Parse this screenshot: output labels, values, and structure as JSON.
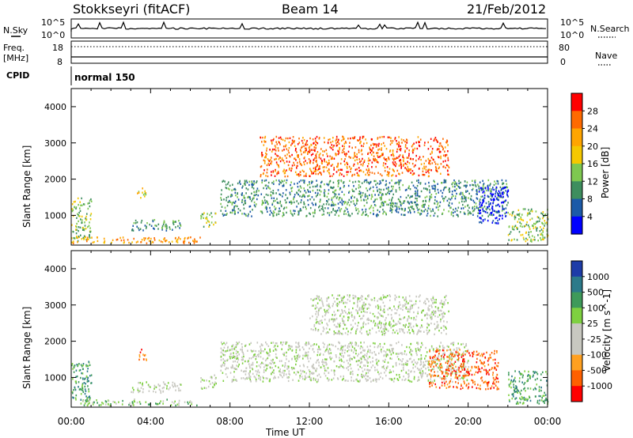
{
  "header": {
    "station": "Stokkseyri (fitACF)",
    "beam": "Beam 14",
    "date": "21/Feb/2012"
  },
  "top_panels": {
    "nsky_label": "N.Sky",
    "nsky_ticks": [
      "10^5",
      "10^0"
    ],
    "nsearch_label": "N.Search",
    "nsearch_ticks": [
      "10^5",
      "10^0"
    ],
    "freq_label_1": "Freq.",
    "freq_label_2": "[MHz]",
    "freq_ticks": [
      "18",
      "8"
    ],
    "nave_label": "Nave",
    "nave_ticks": [
      "80",
      "0"
    ],
    "cpid_label": "CPID",
    "cpid_value": "normal 150"
  },
  "chart_data": [
    {
      "type": "heatmap",
      "panel": "power",
      "ylabel": "Slant Range [km]",
      "xlabel": "Time UT",
      "ylim": [
        180,
        4500
      ],
      "y_ticks": [
        1000,
        2000,
        3000,
        4000
      ],
      "x_tick_labels": [
        "00:00",
        "04:00",
        "08:00",
        "12:00",
        "16:00",
        "20:00",
        "00:00"
      ],
      "colorbar_label": "Power [dB]",
      "colorbar_ticks": [
        "28",
        "24",
        "20",
        "16",
        "12",
        "8",
        "4"
      ],
      "colorbar_colors": [
        "#ff0000",
        "#ff6a00",
        "#ffa500",
        "#f5c800",
        "#7ec850",
        "#3e8e5e",
        "#1c5aa8",
        "#0000ff"
      ],
      "echo_regions": [
        {
          "t0": 0.0,
          "t1": 1.0,
          "r0": 300,
          "r1": 1500,
          "level": 4
        },
        {
          "t0": 0.0,
          "t1": 6.5,
          "r0": 250,
          "r1": 420,
          "level": 2
        },
        {
          "t0": 3.0,
          "t1": 5.5,
          "r0": 600,
          "r1": 900,
          "level": 5
        },
        {
          "t0": 6.5,
          "t1": 7.3,
          "r0": 700,
          "r1": 1100,
          "level": 4
        },
        {
          "t0": 3.3,
          "t1": 3.8,
          "r0": 1500,
          "r1": 1800,
          "level": 3
        },
        {
          "t0": 7.5,
          "t1": 22.0,
          "r0": 1000,
          "r1": 2000,
          "level": 5
        },
        {
          "t0": 9.5,
          "t1": 19.0,
          "r0": 2100,
          "r1": 3200,
          "level": 1
        },
        {
          "t0": 20.5,
          "t1": 22.0,
          "r0": 800,
          "r1": 1800,
          "level": 7
        },
        {
          "t0": 22.0,
          "t1": 24.0,
          "r0": 300,
          "r1": 1200,
          "level": 4
        }
      ]
    },
    {
      "type": "heatmap",
      "panel": "velocity",
      "ylabel": "Slant Range [km]",
      "xlabel": "Time UT",
      "ylim": [
        180,
        4500
      ],
      "y_ticks": [
        1000,
        2000,
        3000,
        4000
      ],
      "x_tick_labels": [
        "00:00",
        "04:00",
        "08:00",
        "12:00",
        "16:00",
        "20:00",
        "00:00"
      ],
      "colorbar_label": "Velocity [m s^-1]",
      "colorbar_ticks": [
        "1000",
        "500",
        "100",
        "25",
        "-25",
        "-100",
        "-500",
        "-1000"
      ],
      "colorbar_colors": [
        "#1e3ca8",
        "#2c7a8a",
        "#3e9a5a",
        "#7ed040",
        "#c8c8c0",
        "#c8c8c0",
        "#ffa020",
        "#ff6000",
        "#ff0000"
      ],
      "echo_regions": [
        {
          "t0": 0.0,
          "t1": 1.0,
          "r0": 300,
          "r1": 1500,
          "level": 2
        },
        {
          "t0": 0.5,
          "t1": 6.5,
          "r0": 250,
          "r1": 420,
          "level": 3
        },
        {
          "t0": 3.0,
          "t1": 5.5,
          "r0": 600,
          "r1": 900,
          "level": 4
        },
        {
          "t0": 6.5,
          "t1": 7.3,
          "r0": 700,
          "r1": 1100,
          "level": 4
        },
        {
          "t0": 3.3,
          "t1": 3.8,
          "r0": 1500,
          "r1": 1800,
          "level": 7
        },
        {
          "t0": 7.5,
          "t1": 20.0,
          "r0": 900,
          "r1": 2000,
          "level": 4
        },
        {
          "t0": 12.0,
          "t1": 19.0,
          "r0": 2200,
          "r1": 3300,
          "level": 4
        },
        {
          "t0": 18.0,
          "t1": 21.5,
          "r0": 700,
          "r1": 1800,
          "level": 7
        },
        {
          "t0": 22.0,
          "t1": 24.0,
          "r0": 300,
          "r1": 1200,
          "level": 2
        }
      ]
    }
  ]
}
